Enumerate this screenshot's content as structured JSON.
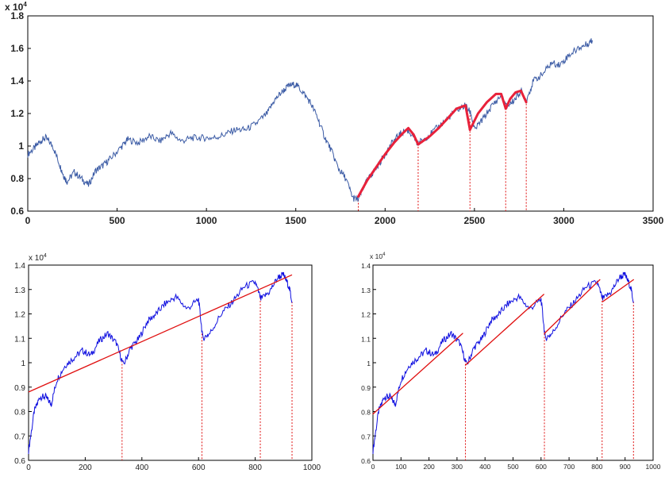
{
  "chart_data": [
    {
      "type": "line",
      "name": "top-panel",
      "exponent_label": "x 10",
      "exponent_power": "4",
      "xlim": [
        0,
        3500
      ],
      "ylim": [
        0.6,
        1.8
      ],
      "x_ticks": [
        "0",
        "500",
        "1000",
        "1500",
        "2000",
        "2500",
        "3000",
        "3500"
      ],
      "y_ticks": [
        "0.6",
        "0.8",
        "1",
        "1.2",
        "1.4",
        "1.6",
        "1.8"
      ],
      "series": [
        {
          "role": "price",
          "color": "#3b5ba5",
          "x": [
            0,
            40,
            70,
            100,
            140,
            180,
            200,
            220,
            260,
            300,
            340,
            380,
            420,
            460,
            520,
            560,
            620,
            680,
            740,
            800,
            860,
            920,
            980,
            1040,
            1100,
            1160,
            1220,
            1280,
            1340,
            1380,
            1420,
            1460,
            1500,
            1540,
            1580,
            1620,
            1660,
            1700,
            1740,
            1780,
            1820,
            1850,
            1880,
            1920,
            1960,
            2000,
            2040,
            2080,
            2120,
            2160,
            2180,
            2200,
            2250,
            2300,
            2350,
            2400,
            2450,
            2480,
            2500,
            2550,
            2600,
            2650,
            2680,
            2720,
            2760,
            2790,
            2830,
            2880,
            2930,
            2980,
            3030,
            3080,
            3120,
            3160
          ],
          "y": [
            0.95,
            0.99,
            1.03,
            1.05,
            1.0,
            0.88,
            0.82,
            0.78,
            0.84,
            0.8,
            0.76,
            0.85,
            0.88,
            0.92,
            0.99,
            1.04,
            1.02,
            1.06,
            1.03,
            1.08,
            1.03,
            1.05,
            1.05,
            1.05,
            1.07,
            1.1,
            1.1,
            1.14,
            1.2,
            1.28,
            1.33,
            1.37,
            1.38,
            1.33,
            1.27,
            1.18,
            1.06,
            0.97,
            0.86,
            0.8,
            0.68,
            0.67,
            0.75,
            0.82,
            0.88,
            0.95,
            1.02,
            1.07,
            1.1,
            1.06,
            1.01,
            1.03,
            1.07,
            1.12,
            1.17,
            1.22,
            1.25,
            1.2,
            1.1,
            1.17,
            1.25,
            1.31,
            1.24,
            1.28,
            1.34,
            1.28,
            1.4,
            1.44,
            1.51,
            1.5,
            1.56,
            1.6,
            1.62,
            1.65
          ]
        },
        {
          "role": "fitted-segments",
          "color": "#e8213a",
          "segments": [
            {
              "x": [
                1850,
                1900,
                1950,
                2000,
                2050,
                2100,
                2130,
                2160,
                2185
              ],
              "y": [
                0.69,
                0.79,
                0.87,
                0.95,
                1.02,
                1.08,
                1.11,
                1.07,
                1.01
              ]
            },
            {
              "x": [
                2185,
                2250,
                2300,
                2350,
                2400,
                2450,
                2475
              ],
              "y": [
                1.01,
                1.06,
                1.11,
                1.17,
                1.23,
                1.25,
                1.1
              ]
            },
            {
              "x": [
                2475,
                2520,
                2570,
                2620,
                2650,
                2675
              ],
              "y": [
                1.1,
                1.2,
                1.27,
                1.32,
                1.32,
                1.23
              ]
            },
            {
              "x": [
                2675,
                2700,
                2730,
                2760,
                2790
              ],
              "y": [
                1.23,
                1.29,
                1.33,
                1.34,
                1.27
              ]
            }
          ]
        }
      ],
      "break_markers_x": [
        1850,
        2185,
        2475,
        2675,
        2790
      ]
    },
    {
      "type": "line",
      "name": "bottom-left-panel",
      "exponent_label": "x 10",
      "exponent_power": "4",
      "xlim": [
        0,
        1000
      ],
      "ylim": [
        0.6,
        1.4
      ],
      "x_ticks": [
        "0",
        "200",
        "400",
        "600",
        "800",
        "1000"
      ],
      "y_ticks": [
        "0.6",
        "0.7",
        "0.8",
        "0.9",
        "1",
        "1.1",
        "1.2",
        "1.3",
        "1.4"
      ],
      "series": [
        {
          "role": "price",
          "color": "#1010e0",
          "x": [
            0,
            20,
            40,
            60,
            80,
            100,
            130,
            160,
            190,
            220,
            250,
            280,
            310,
            335,
            360,
            390,
            420,
            450,
            480,
            520,
            560,
            600,
            615,
            640,
            680,
            720,
            760,
            800,
            820,
            850,
            880,
            900,
            920,
            930
          ],
          "y": [
            0.64,
            0.8,
            0.86,
            0.86,
            0.83,
            0.93,
            0.99,
            1.02,
            1.05,
            1.03,
            1.09,
            1.12,
            1.08,
            0.99,
            1.06,
            1.1,
            1.17,
            1.2,
            1.24,
            1.27,
            1.22,
            1.26,
            1.1,
            1.12,
            1.2,
            1.25,
            1.31,
            1.33,
            1.26,
            1.29,
            1.35,
            1.36,
            1.31,
            1.25
          ]
        },
        {
          "role": "trend-line",
          "color": "#e01010",
          "x": [
            0,
            930
          ],
          "y": [
            0.88,
            1.36
          ]
        }
      ],
      "break_markers_x": [
        330,
        612,
        818,
        930
      ]
    },
    {
      "type": "line",
      "name": "bottom-right-panel",
      "exponent_label": "x 10",
      "exponent_power": "4",
      "xlim": [
        0,
        1000
      ],
      "ylim": [
        0.6,
        1.4
      ],
      "x_ticks": [
        "0",
        "100",
        "200",
        "300",
        "400",
        "500",
        "600",
        "700",
        "800",
        "900",
        "1000"
      ],
      "y_ticks": [
        "0.6",
        "0.7",
        "0.8",
        "0.9",
        "1",
        "1.1",
        "1.2",
        "1.3",
        "1.4"
      ],
      "series": [
        {
          "role": "price",
          "color": "#1010e0",
          "x": [
            0,
            20,
            40,
            60,
            80,
            100,
            130,
            160,
            190,
            220,
            250,
            280,
            310,
            335,
            360,
            390,
            420,
            450,
            480,
            520,
            560,
            600,
            615,
            640,
            680,
            720,
            760,
            800,
            820,
            850,
            880,
            900,
            920,
            930
          ],
          "y": [
            0.64,
            0.8,
            0.86,
            0.86,
            0.83,
            0.93,
            0.99,
            1.02,
            1.05,
            1.03,
            1.09,
            1.12,
            1.08,
            0.99,
            1.06,
            1.1,
            1.17,
            1.2,
            1.24,
            1.27,
            1.22,
            1.26,
            1.1,
            1.12,
            1.2,
            1.25,
            1.31,
            1.33,
            1.26,
            1.29,
            1.35,
            1.36,
            1.31,
            1.25
          ]
        },
        {
          "role": "piecewise-trend",
          "color": "#e01010",
          "segments": [
            {
              "x": [
                0,
                320
              ],
              "y": [
                0.79,
                1.12
              ]
            },
            {
              "x": [
                330,
                610
              ],
              "y": [
                0.99,
                1.28
              ]
            },
            {
              "x": [
                612,
                810
              ],
              "y": [
                1.12,
                1.34
              ]
            },
            {
              "x": [
                820,
                930
              ],
              "y": [
                1.25,
                1.34
              ]
            }
          ]
        }
      ],
      "break_markers_x": [
        330,
        612,
        818,
        930
      ]
    }
  ]
}
